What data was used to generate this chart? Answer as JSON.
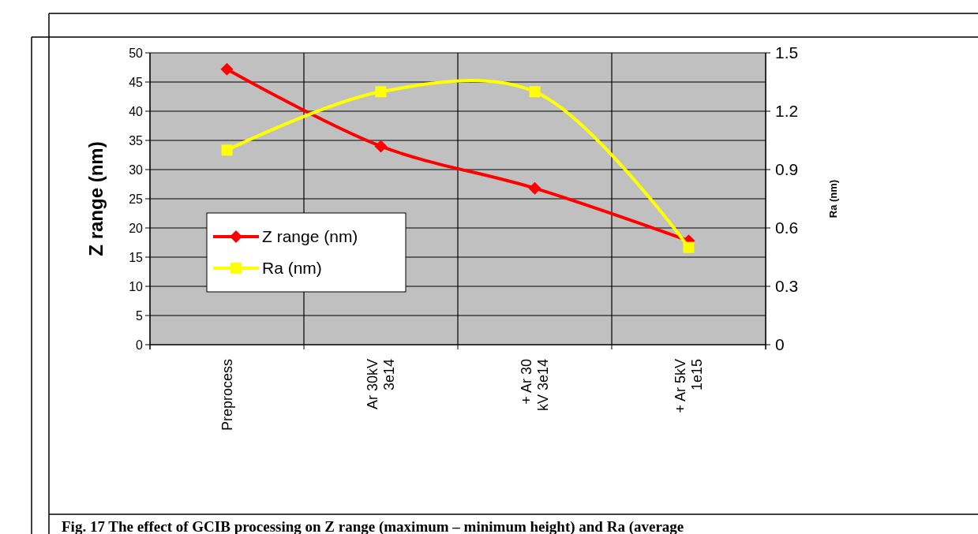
{
  "chart_data": {
    "type": "line",
    "ylabel": "Z range (nm)",
    "y2label": "Ra (nm)",
    "categories": [
      "Preprocess",
      "Ar 30kV\n3e14",
      "+ Ar 30\nkV 3e14",
      "+ Ar 5kV\n1e15"
    ],
    "series": [
      {
        "name": "Z range (nm)",
        "color": "#ff0000",
        "values": [
          47.2,
          34,
          26.8,
          17.8
        ],
        "marker": "diamond"
      },
      {
        "name": "Ra (nm)",
        "color": "#ffff00",
        "values": [
          1.0,
          1.3,
          1.3,
          0.5
        ],
        "marker": "square",
        "axis": "y2"
      }
    ],
    "ylim": [
      0,
      50
    ],
    "yticks": [
      0,
      5,
      10,
      15,
      20,
      25,
      30,
      35,
      40,
      45,
      50
    ],
    "y2lim": [
      0,
      1.5
    ],
    "y2ticks": [
      0,
      0.3,
      0.6,
      0.9,
      1.2,
      1.5
    ],
    "grid": true,
    "legend": "left",
    "line_style": "solid",
    "annotations": [
      "Fig. 17  The effect of GCIB processing on Z range (maximum – minimum height) and Ra (average"
    ]
  }
}
